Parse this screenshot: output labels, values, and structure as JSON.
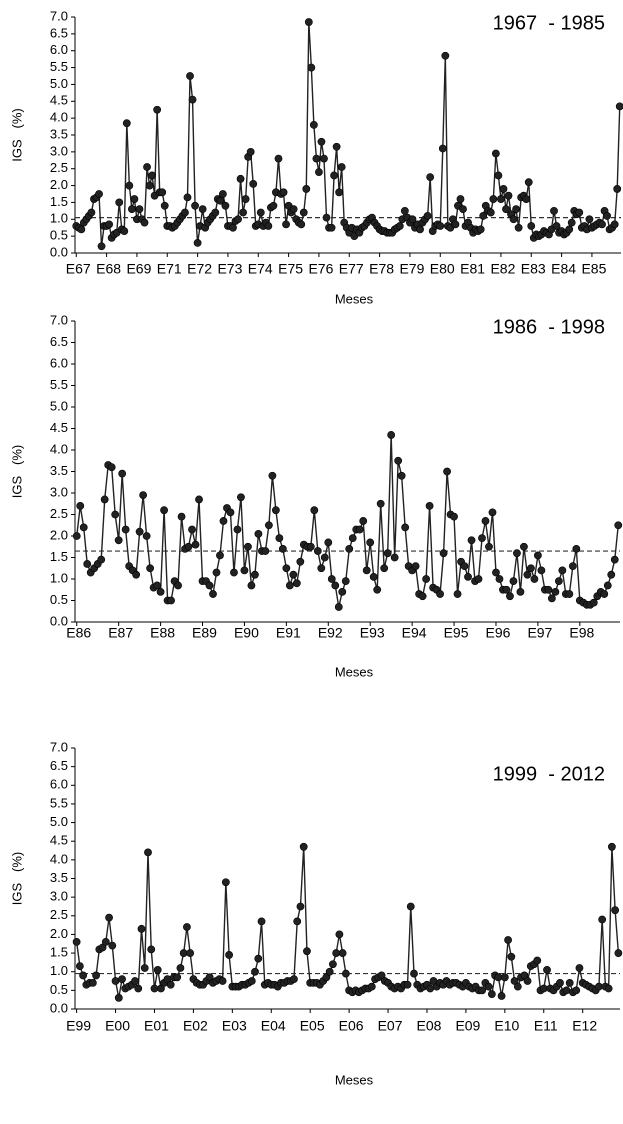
{
  "chart_data": [
    {
      "type": "line",
      "annotation": "1967  - 1985",
      "y_label": "IGS   (%)",
      "x_label": "Meses",
      "color": "#222222",
      "reference_line": 1.05,
      "ylim": [
        0,
        7
      ],
      "yticks": [
        {
          "value": 0,
          "label": "0.0"
        },
        0.5,
        {
          "value": 1,
          "label": "1.0"
        },
        1.5,
        {
          "value": 2,
          "label": "2.0"
        },
        2.5,
        {
          "value": 3,
          "label": "3.0"
        },
        3.5,
        {
          "value": 4,
          "label": "4.0"
        },
        4.5,
        {
          "value": 5,
          "label": "5.0"
        },
        5.5,
        {
          "value": 6,
          "label": "6.0"
        },
        6.5,
        {
          "value": 7,
          "label": "7.0"
        }
      ],
      "categories": [
        "E67",
        null,
        null,
        null,
        null,
        null,
        null,
        null,
        null,
        null,
        null,
        null,
        "E68",
        null,
        null,
        null,
        null,
        null,
        null,
        null,
        null,
        null,
        null,
        null,
        "E69",
        null,
        null,
        null,
        null,
        null,
        null,
        null,
        null,
        null,
        null,
        null,
        "E71",
        null,
        null,
        null,
        null,
        null,
        null,
        null,
        null,
        null,
        null,
        null,
        "E72",
        null,
        null,
        null,
        null,
        null,
        null,
        null,
        null,
        null,
        null,
        null,
        "E73",
        null,
        null,
        null,
        null,
        null,
        null,
        null,
        null,
        null,
        null,
        null,
        "E74",
        null,
        null,
        null,
        null,
        null,
        null,
        null,
        null,
        null,
        null,
        null,
        "E75",
        null,
        null,
        null,
        null,
        null,
        null,
        null,
        null,
        null,
        null,
        null,
        "E76",
        null,
        null,
        null,
        null,
        null,
        null,
        null,
        null,
        null,
        null,
        null,
        "E77",
        null,
        null,
        null,
        null,
        null,
        null,
        null,
        null,
        null,
        null,
        null,
        "E78",
        null,
        null,
        null,
        null,
        null,
        null,
        null,
        null,
        null,
        null,
        null,
        "E79",
        null,
        null,
        null,
        null,
        null,
        null,
        null,
        null,
        null,
        null,
        null,
        "E80",
        null,
        null,
        null,
        null,
        null,
        null,
        null,
        null,
        null,
        null,
        null,
        "E81",
        null,
        null,
        null,
        null,
        null,
        null,
        null,
        null,
        null,
        null,
        null,
        "E82",
        null,
        null,
        null,
        null,
        null,
        null,
        null,
        null,
        null,
        null,
        null,
        "E83",
        null,
        null,
        null,
        null,
        null,
        null,
        null,
        null,
        null,
        null,
        null,
        "E84",
        null,
        null,
        null,
        null,
        null,
        null,
        null,
        null,
        null,
        null,
        null,
        "E85",
        null,
        null,
        null,
        null,
        null,
        null,
        null,
        null,
        null,
        null,
        null
      ],
      "values": [
        0.8,
        0.75,
        0.7,
        0.9,
        1.0,
        1.1,
        1.2,
        1.6,
        1.65,
        1.75,
        0.2,
        0.8,
        0.8,
        0.85,
        0.45,
        0.55,
        0.6,
        1.5,
        0.7,
        0.65,
        3.85,
        2.0,
        1.3,
        1.6,
        1.0,
        1.3,
        1.0,
        0.9,
        2.55,
        2.0,
        2.3,
        1.7,
        4.25,
        1.8,
        1.8,
        1.4,
        0.8,
        0.8,
        0.75,
        0.8,
        0.9,
        1.0,
        1.1,
        1.2,
        1.65,
        5.25,
        4.55,
        1.4,
        0.3,
        0.8,
        1.3,
        0.75,
        0.9,
        1.0,
        1.1,
        1.2,
        1.6,
        1.55,
        1.75,
        1.4,
        0.8,
        0.8,
        0.75,
        0.95,
        1.0,
        2.2,
        1.2,
        1.6,
        2.85,
        3.0,
        2.05,
        0.8,
        0.85,
        1.2,
        0.8,
        0.9,
        0.8,
        1.35,
        1.4,
        1.8,
        2.8,
        1.75,
        1.8,
        0.85,
        1.4,
        1.2,
        1.3,
        1.0,
        0.9,
        0.85,
        1.2,
        1.9,
        6.85,
        5.5,
        3.8,
        2.8,
        2.4,
        3.3,
        2.8,
        1.05,
        0.75,
        0.75,
        2.3,
        3.15,
        1.8,
        2.55,
        0.9,
        0.75,
        0.6,
        0.75,
        0.5,
        0.7,
        0.6,
        0.75,
        0.8,
        0.9,
        1.0,
        1.05,
        0.9,
        0.8,
        0.7,
        0.65,
        0.65,
        0.6,
        0.6,
        0.6,
        0.7,
        0.75,
        0.8,
        1.0,
        1.25,
        1.05,
        0.9,
        1.0,
        0.75,
        0.85,
        0.7,
        0.9,
        1.0,
        1.1,
        2.25,
        0.65,
        0.8,
        0.85,
        0.8,
        3.1,
        5.85,
        0.8,
        0.75,
        1.0,
        0.85,
        1.4,
        1.6,
        1.3,
        0.8,
        0.9,
        0.75,
        0.6,
        0.7,
        0.65,
        0.7,
        1.1,
        1.4,
        1.25,
        1.2,
        1.6,
        2.95,
        2.3,
        1.6,
        1.9,
        1.3,
        1.7,
        1.15,
        1.0,
        1.3,
        0.75,
        1.65,
        1.7,
        1.6,
        2.1,
        0.8,
        0.45,
        0.55,
        0.5,
        0.55,
        0.65,
        0.6,
        0.55,
        0.7,
        1.25,
        0.8,
        0.6,
        0.65,
        0.55,
        0.6,
        0.7,
        0.9,
        1.25,
        1.15,
        1.2,
        0.75,
        0.8,
        0.7,
        1.0,
        0.75,
        0.8,
        0.85,
        0.9,
        0.85,
        1.25,
        1.1,
        0.7,
        0.75,
        0.85,
        1.9,
        4.35
      ]
    },
    {
      "type": "line",
      "annotation": "1986  - 1998",
      "y_label": "IGS   (%)",
      "x_label": "Meses",
      "color": "#222222",
      "reference_line": 1.65,
      "ylim": [
        0,
        7
      ],
      "yticks": [
        {
          "value": 0,
          "label": "0.0"
        },
        0.5,
        {
          "value": 1,
          "label": "1.0"
        },
        1.5,
        {
          "value": 2,
          "label": "2.0"
        },
        2.5,
        {
          "value": 3,
          "label": "3.0"
        },
        3.5,
        {
          "value": 4,
          "label": "4.0"
        },
        4.5,
        {
          "value": 5,
          "label": "5.0"
        },
        5.5,
        {
          "value": 6,
          "label": "6.0"
        },
        6.5,
        {
          "value": 7,
          "label": "7.0"
        }
      ],
      "categories": [
        "E86",
        null,
        null,
        null,
        null,
        null,
        null,
        null,
        null,
        null,
        null,
        null,
        "E87",
        null,
        null,
        null,
        null,
        null,
        null,
        null,
        null,
        null,
        null,
        null,
        "E88",
        null,
        null,
        null,
        null,
        null,
        null,
        null,
        null,
        null,
        null,
        null,
        "E89",
        null,
        null,
        null,
        null,
        null,
        null,
        null,
        null,
        null,
        null,
        null,
        "E90",
        null,
        null,
        null,
        null,
        null,
        null,
        null,
        null,
        null,
        null,
        null,
        "E91",
        null,
        null,
        null,
        null,
        null,
        null,
        null,
        null,
        null,
        null,
        null,
        "E92",
        null,
        null,
        null,
        null,
        null,
        null,
        null,
        null,
        null,
        null,
        null,
        "E93",
        null,
        null,
        null,
        null,
        null,
        null,
        null,
        null,
        null,
        null,
        null,
        "E94",
        null,
        null,
        null,
        null,
        null,
        null,
        null,
        null,
        null,
        null,
        null,
        "E95",
        null,
        null,
        null,
        null,
        null,
        null,
        null,
        null,
        null,
        null,
        null,
        "E96",
        null,
        null,
        null,
        null,
        null,
        null,
        null,
        null,
        null,
        null,
        null,
        "E97",
        null,
        null,
        null,
        null,
        null,
        null,
        null,
        null,
        null,
        null,
        null,
        "E98",
        null,
        null,
        null,
        null,
        null,
        null,
        null,
        null,
        null,
        null,
        null
      ],
      "values": [
        2.0,
        2.7,
        2.2,
        1.35,
        1.15,
        1.25,
        1.35,
        1.45,
        2.85,
        3.65,
        3.6,
        2.5,
        1.9,
        3.45,
        2.15,
        1.3,
        1.2,
        1.1,
        2.1,
        2.95,
        2.0,
        1.25,
        0.8,
        0.85,
        0.7,
        2.6,
        0.5,
        0.5,
        0.95,
        0.85,
        2.45,
        1.7,
        1.75,
        2.15,
        1.8,
        2.85,
        0.95,
        0.95,
        0.85,
        0.65,
        1.15,
        1.55,
        2.35,
        2.65,
        2.55,
        1.15,
        2.15,
        2.9,
        1.2,
        1.75,
        0.85,
        1.1,
        2.05,
        1.65,
        1.65,
        2.25,
        3.4,
        2.6,
        1.95,
        1.7,
        1.25,
        0.85,
        1.1,
        0.9,
        1.4,
        1.8,
        1.75,
        1.75,
        2.6,
        1.65,
        1.25,
        1.5,
        1.85,
        1.0,
        0.85,
        0.35,
        0.7,
        0.95,
        1.7,
        1.95,
        2.15,
        2.15,
        2.35,
        1.2,
        1.85,
        1.05,
        0.75,
        2.75,
        1.25,
        1.6,
        4.35,
        1.5,
        3.75,
        3.4,
        2.2,
        1.3,
        1.2,
        1.3,
        0.65,
        0.6,
        1.0,
        2.7,
        0.8,
        0.75,
        0.65,
        1.6,
        3.5,
        2.5,
        2.45,
        0.65,
        1.4,
        1.3,
        1.05,
        1.9,
        0.95,
        1.0,
        1.95,
        2.35,
        1.75,
        2.55,
        1.15,
        1.0,
        0.75,
        0.75,
        0.6,
        0.95,
        1.6,
        0.7,
        1.75,
        1.1,
        1.25,
        1.0,
        1.55,
        1.2,
        0.75,
        0.75,
        0.55,
        0.7,
        0.95,
        1.2,
        0.65,
        0.65,
        1.3,
        1.7,
        0.5,
        0.45,
        0.4,
        0.4,
        0.45,
        0.6,
        0.7,
        0.65,
        0.85,
        1.1,
        1.45,
        2.25
      ]
    },
    {
      "type": "line",
      "annotation": "1999  - 2012",
      "y_label": "IGS   (%)",
      "x_label": "Meses",
      "color": "#222222",
      "reference_line": 0.95,
      "ylim": [
        0,
        7
      ],
      "yticks": [
        {
          "value": 0,
          "label": "0.0"
        },
        0.5,
        {
          "value": 1,
          "label": "1.0"
        },
        1.5,
        {
          "value": 2,
          "label": "2.0"
        },
        2.5,
        {
          "value": 3,
          "label": "3.0"
        },
        3.5,
        {
          "value": 4,
          "label": "4.0"
        },
        4.5,
        {
          "value": 5,
          "label": "5.0"
        },
        5.5,
        {
          "value": 6,
          "label": "6.0"
        },
        6.5,
        {
          "value": 7,
          "label": "7.0"
        }
      ],
      "categories": [
        "E99",
        null,
        null,
        null,
        null,
        null,
        null,
        null,
        null,
        null,
        null,
        null,
        "E00",
        null,
        null,
        null,
        null,
        null,
        null,
        null,
        null,
        null,
        null,
        null,
        "E01",
        null,
        null,
        null,
        null,
        null,
        null,
        null,
        null,
        null,
        null,
        null,
        "E02",
        null,
        null,
        null,
        null,
        null,
        null,
        null,
        null,
        null,
        null,
        null,
        "E03",
        null,
        null,
        null,
        null,
        null,
        null,
        null,
        null,
        null,
        null,
        null,
        "E04",
        null,
        null,
        null,
        null,
        null,
        null,
        null,
        null,
        null,
        null,
        null,
        "E05",
        null,
        null,
        null,
        null,
        null,
        null,
        null,
        null,
        null,
        null,
        null,
        "E06",
        null,
        null,
        null,
        null,
        null,
        null,
        null,
        null,
        null,
        null,
        null,
        "E07",
        null,
        null,
        null,
        null,
        null,
        null,
        null,
        null,
        null,
        null,
        null,
        "E08",
        null,
        null,
        null,
        null,
        null,
        null,
        null,
        null,
        null,
        null,
        null,
        "E09",
        null,
        null,
        null,
        null,
        null,
        null,
        null,
        null,
        null,
        null,
        null,
        "E10",
        null,
        null,
        null,
        null,
        null,
        null,
        null,
        null,
        null,
        null,
        null,
        "E11",
        null,
        null,
        null,
        null,
        null,
        null,
        null,
        null,
        null,
        null,
        null,
        "E12",
        null,
        null,
        null,
        null,
        null,
        null,
        null,
        null,
        null,
        null,
        null
      ],
      "values": [
        1.8,
        1.15,
        0.9,
        0.65,
        0.7,
        0.7,
        0.9,
        1.6,
        1.65,
        1.8,
        2.45,
        1.7,
        0.75,
        0.3,
        0.8,
        0.55,
        0.6,
        0.65,
        0.75,
        0.55,
        2.15,
        1.1,
        4.2,
        1.6,
        0.55,
        1.05,
        0.55,
        0.7,
        0.8,
        0.65,
        0.85,
        0.85,
        1.1,
        1.5,
        2.2,
        1.5,
        0.8,
        0.7,
        0.65,
        0.65,
        0.75,
        0.85,
        0.7,
        0.75,
        0.8,
        0.75,
        3.4,
        1.45,
        0.6,
        0.6,
        0.6,
        0.65,
        0.65,
        0.7,
        0.75,
        1.0,
        1.35,
        2.35,
        0.65,
        0.7,
        0.65,
        0.65,
        0.6,
        0.7,
        0.7,
        0.75,
        0.75,
        0.8,
        2.35,
        2.75,
        4.35,
        1.55,
        0.7,
        0.7,
        0.7,
        0.65,
        0.75,
        0.85,
        1.0,
        1.2,
        1.5,
        2.0,
        1.5,
        0.95,
        0.5,
        0.45,
        0.5,
        0.45,
        0.5,
        0.55,
        0.55,
        0.6,
        0.8,
        0.85,
        0.9,
        0.75,
        0.7,
        0.6,
        0.55,
        0.6,
        0.55,
        0.65,
        0.65,
        2.75,
        0.95,
        0.65,
        0.55,
        0.6,
        0.65,
        0.55,
        0.75,
        0.6,
        0.7,
        0.65,
        0.75,
        0.65,
        0.7,
        0.7,
        0.65,
        0.6,
        0.7,
        0.6,
        0.55,
        0.6,
        0.5,
        0.5,
        0.7,
        0.6,
        0.4,
        0.9,
        0.85,
        0.35,
        0.85,
        1.85,
        1.4,
        0.75,
        0.6,
        0.85,
        0.9,
        0.75,
        1.15,
        1.2,
        1.3,
        0.5,
        0.55,
        1.05,
        0.55,
        0.5,
        0.6,
        0.7,
        0.45,
        0.5,
        0.7,
        0.45,
        0.5,
        1.1,
        0.7,
        0.65,
        0.6,
        0.55,
        0.5,
        0.6,
        2.4,
        0.6,
        0.55,
        4.35,
        2.65,
        1.5
      ]
    }
  ]
}
